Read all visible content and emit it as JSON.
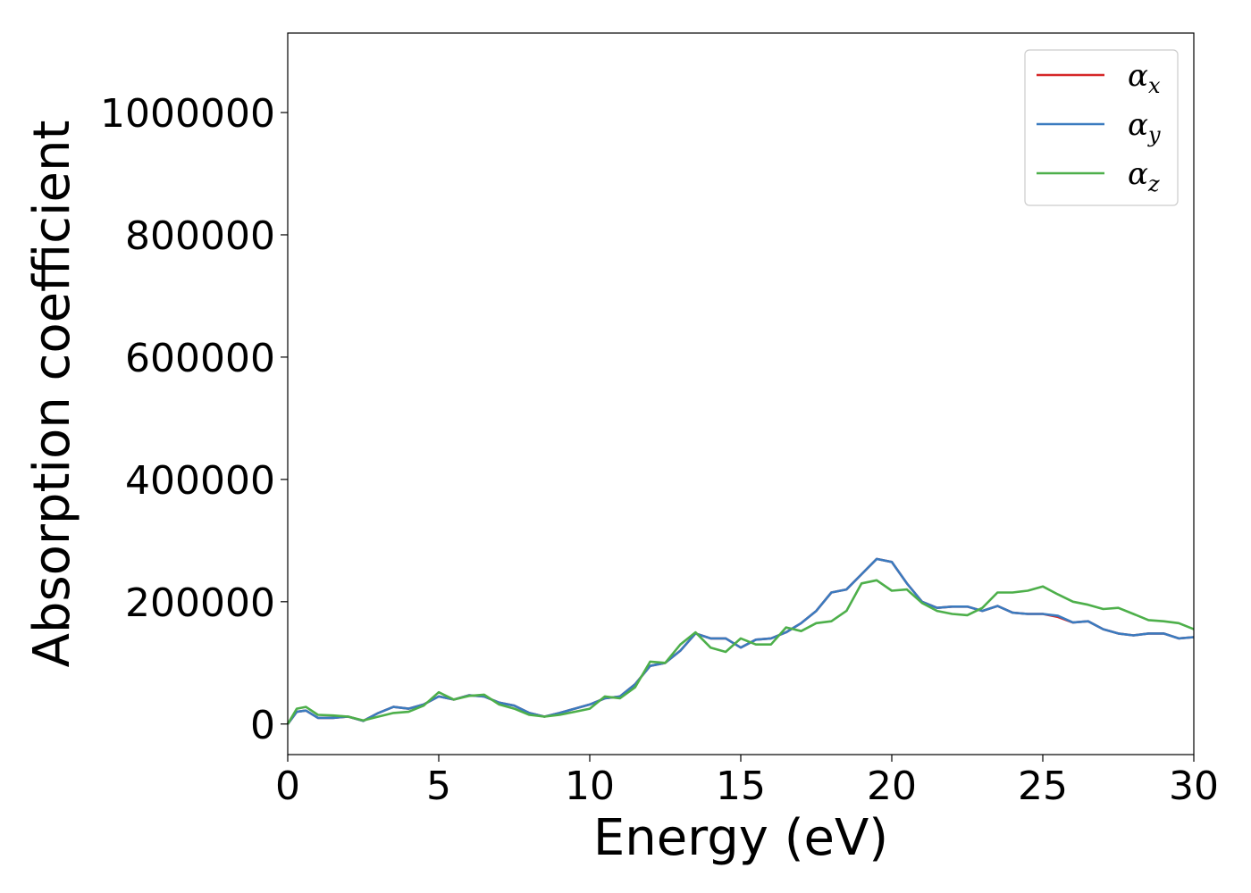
{
  "chart_data": {
    "type": "line",
    "title": "",
    "xlabel": "Energy (eV)",
    "ylabel": "Absorption coefficient",
    "xlim": [
      0,
      30
    ],
    "ylim": [
      -50000,
      1130000
    ],
    "xticks": [
      "0",
      "5",
      "10",
      "15",
      "20",
      "25",
      "30"
    ],
    "xtick_values": [
      0,
      5,
      10,
      15,
      20,
      25,
      30
    ],
    "yticks": [
      "0",
      "200000",
      "400000",
      "600000",
      "800000",
      "1000000"
    ],
    "ytick_values": [
      0,
      200000,
      400000,
      600000,
      800000,
      1000000
    ],
    "grid": false,
    "legend_position": "top-right",
    "series": [
      {
        "name": "α_x",
        "legend_main": "α",
        "legend_sub": "x",
        "color": "#d62728",
        "x": [
          0,
          0.3,
          0.6,
          1.0,
          1.5,
          2.0,
          2.5,
          3.0,
          3.5,
          4.0,
          4.5,
          5.0,
          5.5,
          6.0,
          6.5,
          7.0,
          7.5,
          8.0,
          8.5,
          9.0,
          9.5,
          10.0,
          10.5,
          11.0,
          11.5,
          12.0,
          12.5,
          13.0,
          13.5,
          14.0,
          14.5,
          15.0,
          15.5,
          16.0,
          16.5,
          17.0,
          17.5,
          18.0,
          18.5,
          19.0,
          19.5,
          20.0,
          20.5,
          21.0,
          21.5,
          22.0,
          22.5,
          23.0,
          23.5,
          24.0,
          24.5,
          25.0,
          25.5,
          26.0,
          26.5,
          27.0,
          27.5,
          28.0,
          28.5,
          29.0,
          29.5,
          30.0
        ],
        "values": [
          0,
          20000,
          22000,
          10000,
          10000,
          12000,
          5000,
          18000,
          28000,
          25000,
          32000,
          45000,
          40000,
          47000,
          45000,
          35000,
          30000,
          18000,
          12000,
          18000,
          25000,
          32000,
          42000,
          45000,
          65000,
          95000,
          100000,
          120000,
          148000,
          140000,
          140000,
          125000,
          138000,
          140000,
          150000,
          165000,
          185000,
          215000,
          220000,
          245000,
          270000,
          265000,
          230000,
          200000,
          190000,
          192000,
          192000,
          185000,
          193000,
          182000,
          180000,
          180000,
          175000,
          166000,
          168000,
          155000,
          148000,
          145000,
          148000,
          148000,
          140000,
          142000
        ]
      },
      {
        "name": "α_y",
        "legend_main": "α",
        "legend_sub": "y",
        "color": "#3a7bbf",
        "x": [
          0,
          0.3,
          0.6,
          1.0,
          1.5,
          2.0,
          2.5,
          3.0,
          3.5,
          4.0,
          4.5,
          5.0,
          5.5,
          6.0,
          6.5,
          7.0,
          7.5,
          8.0,
          8.5,
          9.0,
          9.5,
          10.0,
          10.5,
          11.0,
          11.5,
          12.0,
          12.5,
          13.0,
          13.5,
          14.0,
          14.5,
          15.0,
          15.5,
          16.0,
          16.5,
          17.0,
          17.5,
          18.0,
          18.5,
          19.0,
          19.5,
          20.0,
          20.5,
          21.0,
          21.5,
          22.0,
          22.5,
          23.0,
          23.5,
          24.0,
          24.5,
          25.0,
          25.5,
          26.0,
          26.5,
          27.0,
          27.5,
          28.0,
          28.5,
          29.0,
          29.5,
          30.0
        ],
        "values": [
          0,
          20000,
          22000,
          10000,
          10000,
          12000,
          5000,
          18000,
          28000,
          25000,
          32000,
          45000,
          40000,
          47000,
          45000,
          35000,
          30000,
          18000,
          12000,
          18000,
          25000,
          32000,
          42000,
          45000,
          65000,
          95000,
          100000,
          120000,
          148000,
          140000,
          140000,
          125000,
          138000,
          140000,
          150000,
          165000,
          185000,
          215000,
          220000,
          245000,
          270000,
          265000,
          230000,
          200000,
          190000,
          192000,
          192000,
          185000,
          193000,
          182000,
          180000,
          180000,
          177000,
          166000,
          168000,
          155000,
          148000,
          145000,
          148000,
          148000,
          140000,
          142000
        ]
      },
      {
        "name": "α_z",
        "legend_main": "α",
        "legend_sub": "z",
        "color": "#4daf4a",
        "x": [
          0,
          0.3,
          0.6,
          1.0,
          1.5,
          2.0,
          2.5,
          3.0,
          3.5,
          4.0,
          4.5,
          5.0,
          5.5,
          6.0,
          6.5,
          7.0,
          7.5,
          8.0,
          8.5,
          9.0,
          9.5,
          10.0,
          10.5,
          11.0,
          11.5,
          12.0,
          12.5,
          13.0,
          13.5,
          14.0,
          14.5,
          15.0,
          15.5,
          16.0,
          16.5,
          17.0,
          17.5,
          18.0,
          18.5,
          19.0,
          19.5,
          20.0,
          20.5,
          21.0,
          21.5,
          22.0,
          22.5,
          23.0,
          23.5,
          24.0,
          24.5,
          25.0,
          25.5,
          26.0,
          26.5,
          27.0,
          27.5,
          28.0,
          28.5,
          29.0,
          29.5,
          30.0
        ],
        "values": [
          0,
          25000,
          28000,
          15000,
          14000,
          12000,
          6000,
          12000,
          18000,
          20000,
          30000,
          52000,
          40000,
          46000,
          48000,
          32000,
          25000,
          15000,
          12000,
          15000,
          20000,
          25000,
          45000,
          42000,
          60000,
          102000,
          100000,
          130000,
          150000,
          125000,
          118000,
          140000,
          130000,
          130000,
          158000,
          152000,
          165000,
          168000,
          185000,
          230000,
          235000,
          218000,
          220000,
          198000,
          185000,
          180000,
          178000,
          190000,
          215000,
          215000,
          218000,
          225000,
          212000,
          200000,
          195000,
          188000,
          190000,
          180000,
          170000,
          168000,
          165000,
          155000
        ]
      }
    ]
  }
}
